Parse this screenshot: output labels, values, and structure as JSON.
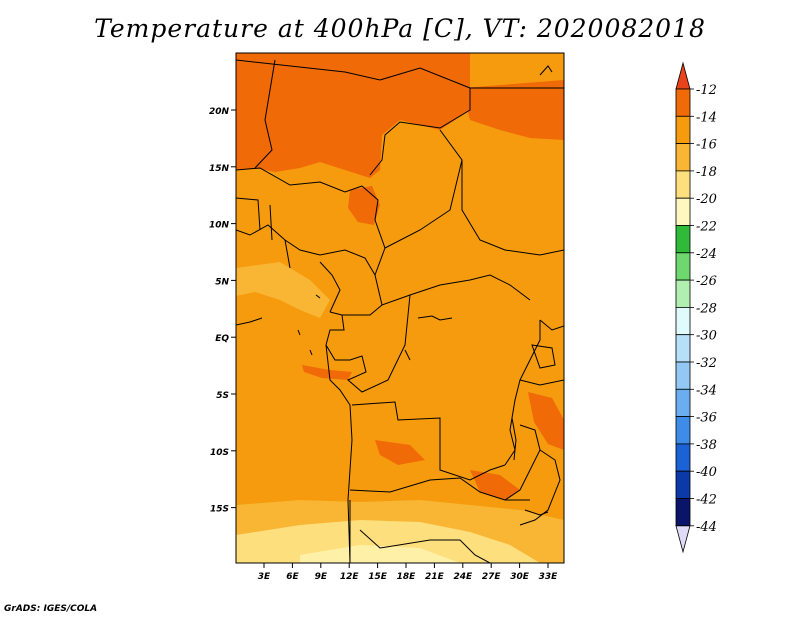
{
  "title": "Temperature at 400hPa [C], VT: 2020082018",
  "credit": "GrADS: IGES/COLA",
  "map": {
    "lat_ticks": [
      "20N",
      "15N",
      "10N",
      "5N",
      "EQ",
      "5S",
      "10S",
      "15S"
    ],
    "lon_ticks": [
      "3E",
      "6E",
      "9E",
      "12E",
      "15E",
      "18E",
      "21E",
      "24E",
      "27E",
      "30E",
      "33E"
    ]
  },
  "colorbar": {
    "levels": [
      "-12",
      "-14",
      "-16",
      "-18",
      "-20",
      "-22",
      "-24",
      "-26",
      "-28",
      "-30",
      "-32",
      "-34",
      "-36",
      "-38",
      "-40",
      "-42",
      "-44"
    ],
    "colors": [
      "#e8431a",
      "#f06a08",
      "#f59b0d",
      "#f9b534",
      "#fddf7d",
      "#fff7c0",
      "#2fba3a",
      "#6ed76e",
      "#b0efb0",
      "#e0fbfb",
      "#b5e0f8",
      "#93c8f5",
      "#6aaef0",
      "#3d8de8",
      "#1a62d6",
      "#0b3aa8",
      "#0a1468",
      "#e0dcf8"
    ]
  },
  "colors": {
    "dominant": "#f59b0d",
    "warm": "#f06a08",
    "cool": "#f9b534",
    "pale": "#fddf7d",
    "border": "#000000"
  }
}
